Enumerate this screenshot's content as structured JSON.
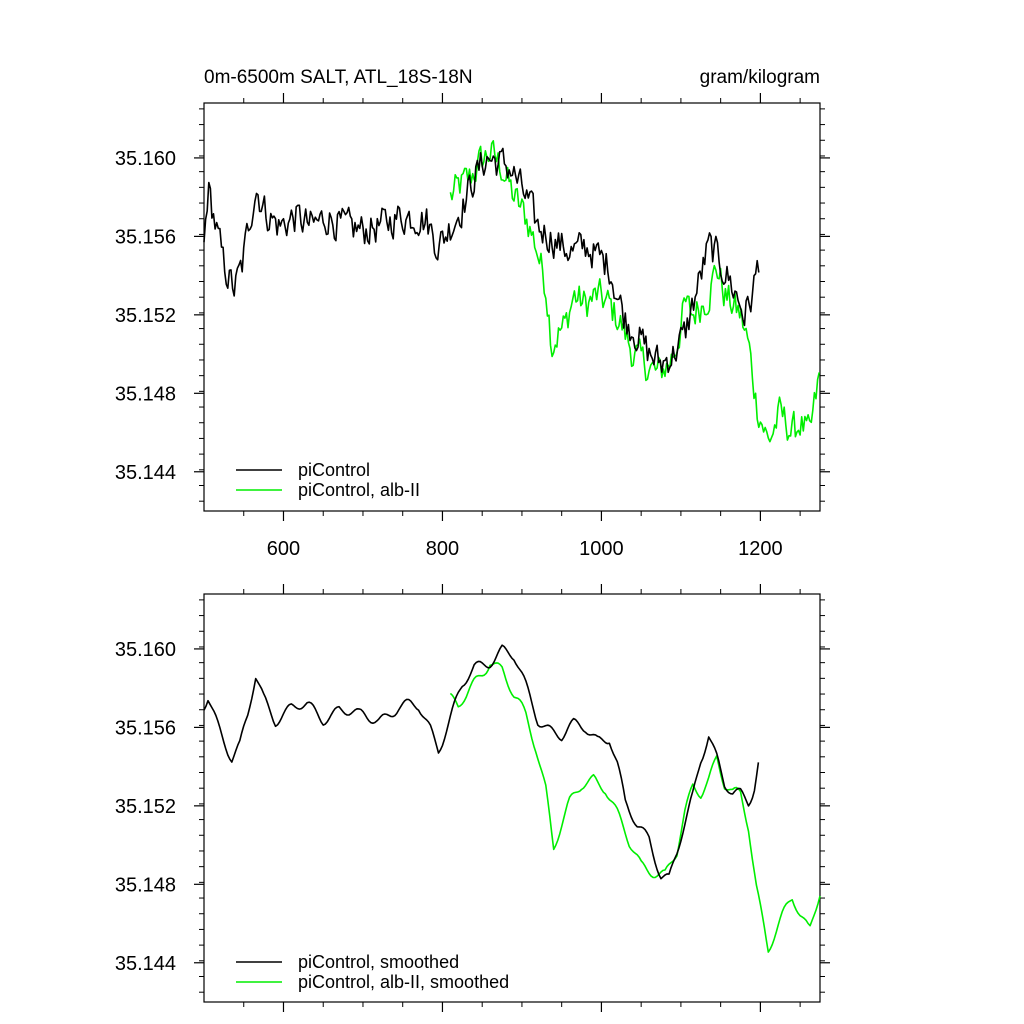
{
  "colors": {
    "control": "#000000",
    "alb": "#00ee00",
    "axis": "#000000",
    "background": "#ffffff"
  },
  "chart_data": [
    {
      "type": "line",
      "title": "0m-6500m SALT, ATL_18S-18N",
      "units": "gram/kilogram",
      "xlim": [
        500,
        1275
      ],
      "ylim": [
        35.142,
        35.1628
      ],
      "xticks": [
        600,
        800,
        1000,
        1200
      ],
      "xticklabels": [
        "600",
        "800",
        "1000",
        "1200"
      ],
      "yticks": [
        35.144,
        35.148,
        35.152,
        35.156,
        35.16
      ],
      "yticklabels": [
        "35.144",
        "35.148",
        "35.152",
        "35.156",
        "35.160"
      ],
      "legend": {
        "position": "bottom-left"
      },
      "grid": false,
      "series": [
        {
          "name": "piControl",
          "color": "#000000",
          "style": "noisy",
          "points": [
            [
              500,
              35.1555
            ],
            [
              505,
              35.1585
            ],
            [
              515,
              35.1565
            ],
            [
              525,
              35.1545
            ],
            [
              538,
              35.1533
            ],
            [
              548,
              35.1545
            ],
            [
              558,
              35.157
            ],
            [
              565,
              35.1585
            ],
            [
              578,
              35.1572
            ],
            [
              595,
              35.1565
            ],
            [
              615,
              35.157
            ],
            [
              635,
              35.1565
            ],
            [
              655,
              35.157
            ],
            [
              675,
              35.1565
            ],
            [
              700,
              35.1563
            ],
            [
              720,
              35.1565
            ],
            [
              745,
              35.157
            ],
            [
              768,
              35.157
            ],
            [
              780,
              35.1568
            ],
            [
              795,
              35.1555
            ],
            [
              810,
              35.1565
            ],
            [
              825,
              35.1575
            ],
            [
              840,
              35.159
            ],
            [
              855,
              35.16
            ],
            [
              870,
              35.1598
            ],
            [
              885,
              35.1595
            ],
            [
              905,
              35.158
            ],
            [
              920,
              35.1565
            ],
            [
              935,
              35.156
            ],
            [
              950,
              35.1555
            ],
            [
              965,
              35.1552
            ],
            [
              980,
              35.1555
            ],
            [
              995,
              35.155
            ],
            [
              1010,
              35.1545
            ],
            [
              1020,
              35.153
            ],
            [
              1030,
              35.1518
            ],
            [
              1045,
              35.151
            ],
            [
              1060,
              35.15
            ],
            [
              1075,
              35.1495
            ],
            [
              1090,
              35.15
            ],
            [
              1105,
              35.151
            ],
            [
              1115,
              35.1525
            ],
            [
              1125,
              35.154
            ],
            [
              1135,
              35.1555
            ],
            [
              1145,
              35.155
            ],
            [
              1158,
              35.154
            ],
            [
              1170,
              35.153
            ],
            [
              1180,
              35.152
            ],
            [
              1190,
              35.153
            ],
            [
              1198,
              35.1548
            ]
          ]
        },
        {
          "name": "piControl, alb-II",
          "color": "#00ee00",
          "style": "noisy",
          "points": [
            [
              810,
              35.158
            ],
            [
              820,
              35.1585
            ],
            [
              835,
              35.159
            ],
            [
              848,
              35.1598
            ],
            [
              860,
              35.1603
            ],
            [
              875,
              35.1595
            ],
            [
              890,
              35.158
            ],
            [
              905,
              35.157
            ],
            [
              918,
              35.1555
            ],
            [
              930,
              35.1535
            ],
            [
              938,
              35.1505
            ],
            [
              945,
              35.151
            ],
            [
              955,
              35.1515
            ],
            [
              965,
              35.153
            ],
            [
              980,
              35.1525
            ],
            [
              995,
              35.153
            ],
            [
              1010,
              35.1525
            ],
            [
              1025,
              35.1515
            ],
            [
              1040,
              35.15
            ],
            [
              1055,
              35.1495
            ],
            [
              1070,
              35.149
            ],
            [
              1085,
              35.1495
            ],
            [
              1095,
              35.1505
            ],
            [
              1105,
              35.1525
            ],
            [
              1115,
              35.152
            ],
            [
              1125,
              35.1525
            ],
            [
              1135,
              35.153
            ],
            [
              1145,
              35.1545
            ],
            [
              1155,
              35.153
            ],
            [
              1165,
              35.1525
            ],
            [
              1175,
              35.152
            ],
            [
              1185,
              35.1505
            ],
            [
              1195,
              35.1475
            ],
            [
              1210,
              35.1455
            ],
            [
              1225,
              35.147
            ],
            [
              1240,
              35.146
            ],
            [
              1250,
              35.1465
            ],
            [
              1262,
              35.1458
            ],
            [
              1275,
              35.149
            ]
          ]
        }
      ]
    },
    {
      "type": "line",
      "xlim": [
        500,
        1275
      ],
      "ylim": [
        35.142,
        35.1628
      ],
      "xticks": [
        600,
        800,
        1000,
        1200
      ],
      "yticks": [
        35.144,
        35.148,
        35.152,
        35.156,
        35.16
      ],
      "yticklabels": [
        "35.144",
        "35.148",
        "35.152",
        "35.156",
        "35.160"
      ],
      "legend": {
        "position": "bottom-left"
      },
      "grid": false,
      "series": [
        {
          "name": "piControl, smoothed",
          "color": "#000000",
          "style": "smooth",
          "points": [
            [
              500,
              35.157
            ],
            [
              505,
              35.1575
            ],
            [
              515,
              35.1565
            ],
            [
              525,
              35.1555
            ],
            [
              535,
              35.1545
            ],
            [
              545,
              35.155
            ],
            [
              555,
              35.1565
            ],
            [
              565,
              35.1585
            ],
            [
              575,
              35.1575
            ],
            [
              590,
              35.1565
            ],
            [
              610,
              35.157
            ],
            [
              630,
              35.157
            ],
            [
              650,
              35.1565
            ],
            [
              670,
              35.157
            ],
            [
              695,
              35.1565
            ],
            [
              720,
              35.1565
            ],
            [
              745,
              35.157
            ],
            [
              770,
              35.157
            ],
            [
              785,
              35.156
            ],
            [
              795,
              35.155
            ],
            [
              810,
              35.1565
            ],
            [
              825,
              35.158
            ],
            [
              840,
              35.159
            ],
            [
              860,
              35.1595
            ],
            [
              875,
              35.16
            ],
            [
              890,
              35.1595
            ],
            [
              905,
              35.158
            ],
            [
              920,
              35.1565
            ],
            [
              935,
              35.156
            ],
            [
              950,
              35.1555
            ],
            [
              965,
              35.156
            ],
            [
              980,
              35.156
            ],
            [
              995,
              35.1555
            ],
            [
              1010,
              35.1555
            ],
            [
              1020,
              35.154
            ],
            [
              1030,
              35.152
            ],
            [
              1045,
              35.151
            ],
            [
              1060,
              35.1505
            ],
            [
              1075,
              35.1485
            ],
            [
              1085,
              35.1482
            ],
            [
              1095,
              35.1495
            ],
            [
              1105,
              35.151
            ],
            [
              1115,
              35.1525
            ],
            [
              1125,
              35.1545
            ],
            [
              1135,
              35.1558
            ],
            [
              1145,
              35.1545
            ],
            [
              1155,
              35.153
            ],
            [
              1165,
              35.1525
            ],
            [
              1175,
              35.1525
            ],
            [
              1185,
              35.1522
            ],
            [
              1192,
              35.153
            ],
            [
              1198,
              35.1545
            ]
          ]
        },
        {
          "name": "piControl, alb-II, smoothed",
          "color": "#00ee00",
          "style": "smooth",
          "points": [
            [
              810,
              35.1575
            ],
            [
              820,
              35.157
            ],
            [
              830,
              35.1575
            ],
            [
              845,
              35.1585
            ],
            [
              860,
              35.1595
            ],
            [
              875,
              35.159
            ],
            [
              890,
              35.1575
            ],
            [
              905,
              35.1565
            ],
            [
              918,
              35.155
            ],
            [
              930,
              35.153
            ],
            [
              940,
              35.15
            ],
            [
              950,
              35.151
            ],
            [
              960,
              35.152
            ],
            [
              975,
              35.153
            ],
            [
              990,
              35.1535
            ],
            [
              1005,
              35.153
            ],
            [
              1020,
              35.1515
            ],
            [
              1035,
              35.15
            ],
            [
              1050,
              35.149
            ],
            [
              1065,
              35.1488
            ],
            [
              1080,
              35.1485
            ],
            [
              1095,
              35.1495
            ],
            [
              1105,
              35.1515
            ],
            [
              1115,
              35.153
            ],
            [
              1125,
              35.1528
            ],
            [
              1135,
              35.1535
            ],
            [
              1145,
              35.1545
            ],
            [
              1155,
              35.153
            ],
            [
              1165,
              35.1525
            ],
            [
              1175,
              35.1525
            ],
            [
              1185,
              35.151
            ],
            [
              1195,
              35.148
            ],
            [
              1210,
              35.1448
            ],
            [
              1225,
              35.146
            ],
            [
              1240,
              35.1472
            ],
            [
              1250,
              35.1465
            ],
            [
              1262,
              35.1458
            ],
            [
              1275,
              35.1478
            ]
          ]
        }
      ]
    }
  ]
}
